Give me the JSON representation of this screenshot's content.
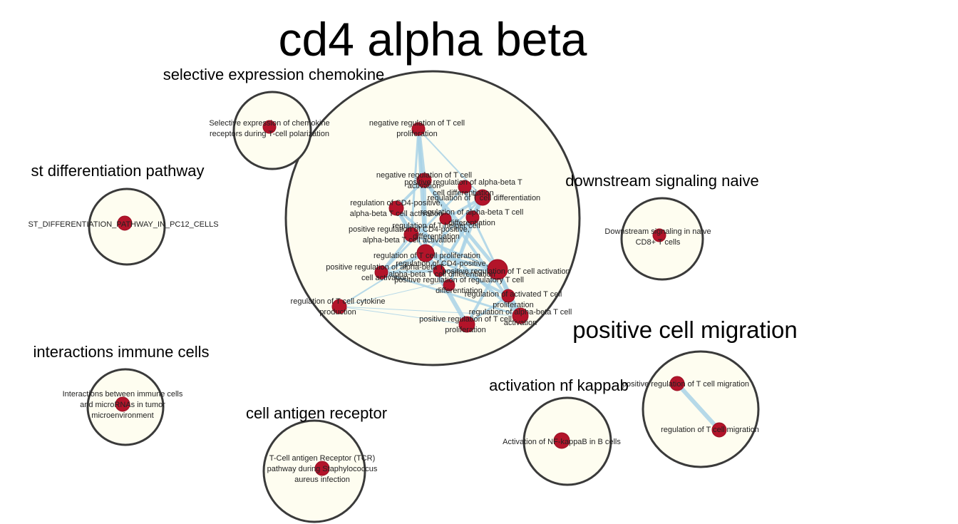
{
  "colors": {
    "background": "#ffffff",
    "cluster_fill": "#fefdf0",
    "cluster_stroke": "#3a3a3a",
    "node_fill": "#b3142a",
    "edge": "#a9d2e6"
  },
  "clusters": [
    {
      "id": "cd4",
      "title": "cd4 alpha beta",
      "nodes": [
        {
          "id": "neg_prolif",
          "lines": [
            "negative regulation of T cell",
            "proliferation"
          ]
        },
        {
          "id": "neg_act",
          "lines": [
            "negative regulation of T cell",
            "activation"
          ]
        },
        {
          "id": "pos_ab_diff",
          "lines": [
            "positive regulation of alpha-beta T",
            "cell differentiation"
          ]
        },
        {
          "id": "reg_diff",
          "lines": [
            "regulation of T cell differentiation"
          ]
        },
        {
          "id": "reg_cd4",
          "lines": [
            "regulation of CD4-positive,",
            "alpha-beta T cell activation"
          ]
        },
        {
          "id": "reg_ab_diff",
          "lines": [
            "regulation of alpha-beta T cell",
            "differentiation"
          ]
        },
        {
          "id": "reg_helper",
          "lines": [
            "regulation of T-helper cell",
            "differentiation"
          ]
        },
        {
          "id": "pos_cd4",
          "lines": [
            "positive regulation of CD4-positive,",
            "alpha-beta T cell activation"
          ]
        },
        {
          "id": "reg_prolif",
          "lines": [
            "regulation of T cell proliferation"
          ]
        },
        {
          "id": "pos_ab_act",
          "lines": [
            "positive regulation of alpha-beta T",
            "cell activation"
          ]
        },
        {
          "id": "reg_cd4_diff",
          "lines": [
            "regulation of CD4-positive,",
            "alpha-beta T cell differentiation"
          ]
        },
        {
          "id": "pos_act",
          "lines": [
            "positive regulation of T cell activation"
          ]
        },
        {
          "id": "pos_reg_t",
          "lines": [
            "positive regulation of regulatory T cell",
            "differentiation"
          ]
        },
        {
          "id": "reg_activated",
          "lines": [
            "regulation of activated T cell",
            "proliferation"
          ]
        },
        {
          "id": "reg_cytokine",
          "lines": [
            "regulation of T cell cytokine",
            "production"
          ]
        },
        {
          "id": "reg_ab_act",
          "lines": [
            "regulation of alpha-beta T cell",
            "activation"
          ]
        },
        {
          "id": "pos_prolif",
          "lines": [
            "positive regulation of T cell",
            "proliferation"
          ]
        }
      ]
    },
    {
      "id": "chemokine",
      "title": "selective expression chemokine",
      "nodes": [
        {
          "id": "chemokine_node",
          "lines": [
            "Selective expression of chemokine",
            "receptors during T-cell polarization"
          ]
        }
      ]
    },
    {
      "id": "st",
      "title": "st differentiation pathway",
      "nodes": [
        {
          "id": "st_node",
          "lines": [
            "ST_DIFFERENTIATION_PATHWAY_IN_PC12_CELLS"
          ]
        }
      ]
    },
    {
      "id": "downstream",
      "title": "downstream signaling naive",
      "nodes": [
        {
          "id": "downstream_node",
          "lines": [
            "Downstream signaling in naive",
            "CD8+ T cells"
          ]
        }
      ]
    },
    {
      "id": "migration",
      "title": "positive cell migration",
      "nodes": [
        {
          "id": "pos_migration",
          "lines": [
            "positive regulation of T cell migration"
          ]
        },
        {
          "id": "reg_migration",
          "lines": [
            "regulation of T cell migration"
          ]
        }
      ]
    },
    {
      "id": "immune",
      "title": "interactions immune cells",
      "nodes": [
        {
          "id": "immune_node",
          "lines": [
            "Interactions between immune cells",
            "and microRNAs in tumor",
            "microenvironment"
          ]
        }
      ]
    },
    {
      "id": "tcr",
      "title": "cell antigen receptor",
      "nodes": [
        {
          "id": "tcr_node",
          "lines": [
            "T-Cell antigen Receptor (TCR)",
            "pathway during Staphylococcus",
            "aureus infection"
          ]
        }
      ]
    },
    {
      "id": "nfkb",
      "title": "activation nf kappab",
      "nodes": [
        {
          "id": "nfkb_node",
          "lines": [
            "Activation of NF-kappaB in B cells"
          ]
        }
      ]
    }
  ]
}
